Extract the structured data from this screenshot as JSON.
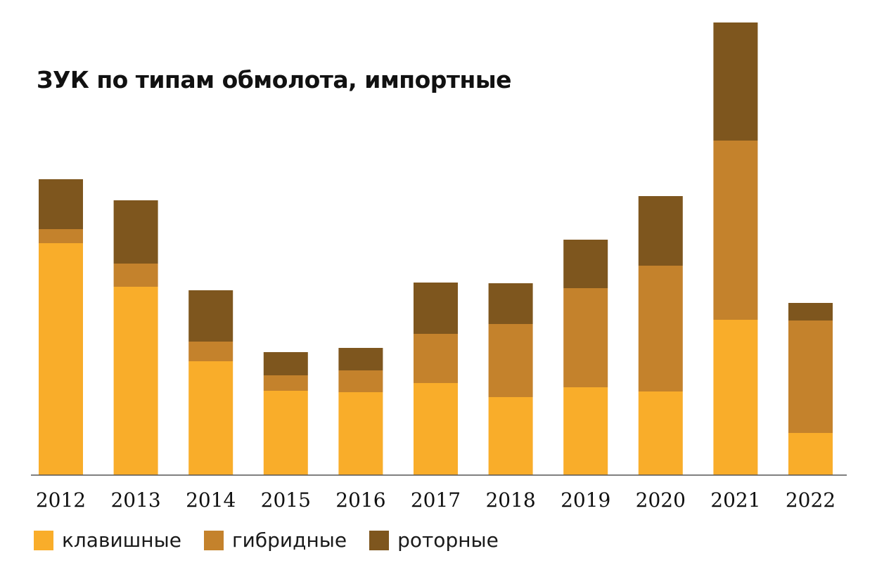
{
  "chart_data": {
    "type": "bar",
    "stacked": true,
    "title": "ЗУК по типам обмолота, импортные",
    "categories": [
      "2012",
      "2013",
      "2014",
      "2015",
      "2016",
      "2017",
      "2018",
      "2019",
      "2020",
      "2021",
      "2022"
    ],
    "series": [
      {
        "name": "клавишные",
        "color": "#F9AD2A",
        "values": [
          330,
          268,
          162,
          120,
          118,
          131,
          111,
          125,
          119,
          221,
          60
        ]
      },
      {
        "name": "гибридные",
        "color": "#C4822C",
        "values": [
          20,
          33,
          28,
          22,
          31,
          70,
          104,
          141,
          179,
          255,
          160
        ]
      },
      {
        "name": "роторные",
        "color": "#7E561E",
        "values": [
          71,
          90,
          73,
          33,
          32,
          73,
          58,
          69,
          99,
          168,
          25
        ]
      }
    ],
    "xlabel": "",
    "ylabel": "",
    "ylim": [
      0,
      650
    ],
    "grid": false,
    "legend": "bottom-left"
  }
}
